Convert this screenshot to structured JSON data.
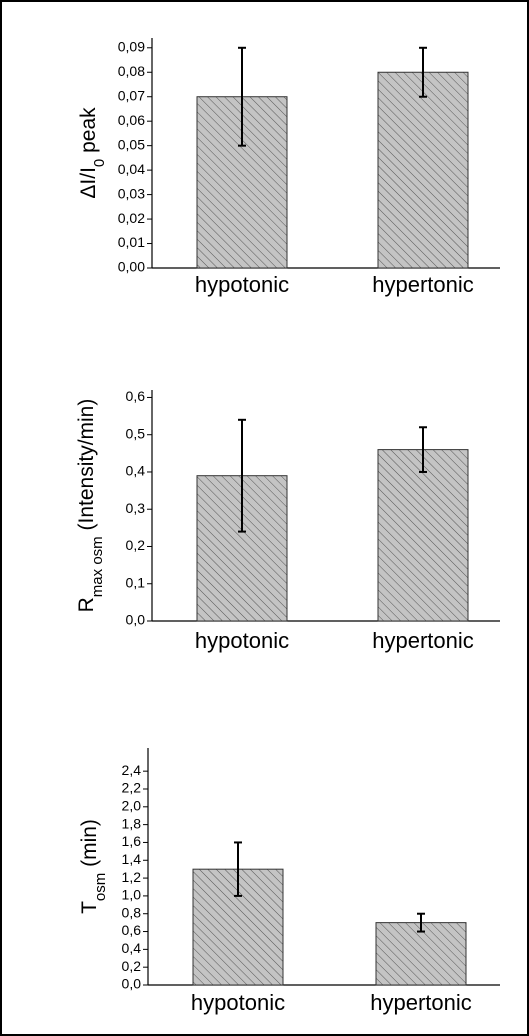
{
  "chart_data": [
    {
      "type": "bar",
      "ylabel": [
        {
          "text": "ΔI/I"
        },
        {
          "text": "0",
          "sub": true
        },
        {
          "text": " peak"
        }
      ],
      "categories": [
        "hypotonic",
        "hypertonic"
      ],
      "values": [
        0.07,
        0.08
      ],
      "errors": [
        0.02,
        0.01
      ],
      "color": "#c4c4c4",
      "ylim": [
        0,
        0.094
      ],
      "yticks": [
        {
          "value": 0,
          "label": "0,00"
        },
        {
          "value": 0.01,
          "label": "0,01"
        },
        {
          "value": 0.02,
          "label": "0,02"
        },
        {
          "value": 0.03,
          "label": "0,03"
        },
        {
          "value": 0.04,
          "label": "0,04"
        },
        {
          "value": 0.05,
          "label": "0,05"
        },
        {
          "value": 0.06,
          "label": "0,06"
        },
        {
          "value": 0.07,
          "label": "0,07"
        },
        {
          "value": 0.08,
          "label": "0,08"
        },
        {
          "value": 0.09,
          "label": "0,09"
        }
      ]
    },
    {
      "type": "bar",
      "ylabel": [
        {
          "text": "R"
        },
        {
          "text": "max osm",
          "sub": true
        },
        {
          "text": " (Intensity/min)"
        }
      ],
      "categories": [
        "hypotonic",
        "hypertonic"
      ],
      "values": [
        0.39,
        0.46
      ],
      "errors": [
        0.15,
        0.06
      ],
      "color": "#c4c4c4",
      "ylim": [
        0,
        0.62
      ],
      "yticks": [
        {
          "value": 0,
          "label": "0,0"
        },
        {
          "value": 0.1,
          "label": "0,1"
        },
        {
          "value": 0.2,
          "label": "0,2"
        },
        {
          "value": 0.3,
          "label": "0,3"
        },
        {
          "value": 0.4,
          "label": "0,4"
        },
        {
          "value": 0.5,
          "label": "0,5"
        },
        {
          "value": 0.6,
          "label": "0,6"
        }
      ]
    },
    {
      "type": "bar",
      "ylabel": [
        {
          "text": "T"
        },
        {
          "text": "osm",
          "sub": true
        },
        {
          "text": " (min)"
        }
      ],
      "categories": [
        "hypotonic",
        "hypertonic"
      ],
      "values": [
        1.3,
        0.7
      ],
      "errors": [
        0.3,
        0.1
      ],
      "color": "#c4c4c4",
      "ylim": [
        0,
        2.66
      ],
      "yticks": [
        {
          "value": 0,
          "label": "0,0"
        },
        {
          "value": 0.2,
          "label": "0,2"
        },
        {
          "value": 0.4,
          "label": "0,4"
        },
        {
          "value": 0.6,
          "label": "0,6"
        },
        {
          "value": 0.8,
          "label": "0,8"
        },
        {
          "value": 1.0,
          "label": "1,0"
        },
        {
          "value": 1.2,
          "label": "1,2"
        },
        {
          "value": 1.4,
          "label": "1,4"
        },
        {
          "value": 1.6,
          "label": "1,6"
        },
        {
          "value": 1.8,
          "label": "1,8"
        },
        {
          "value": 2.0,
          "label": "2,0"
        },
        {
          "value": 2.2,
          "label": "2,2"
        },
        {
          "value": 2.4,
          "label": "2,4"
        }
      ]
    }
  ]
}
